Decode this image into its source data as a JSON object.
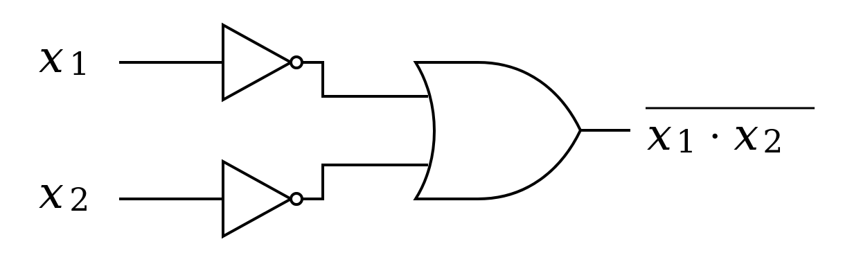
{
  "inputs": [
    {
      "var": "x",
      "sub": "1"
    },
    {
      "var": "x",
      "sub": "2"
    }
  ],
  "output": {
    "var1": "x",
    "sub1": "1",
    "operator": "·",
    "var2": "x",
    "sub2": "2"
  }
}
